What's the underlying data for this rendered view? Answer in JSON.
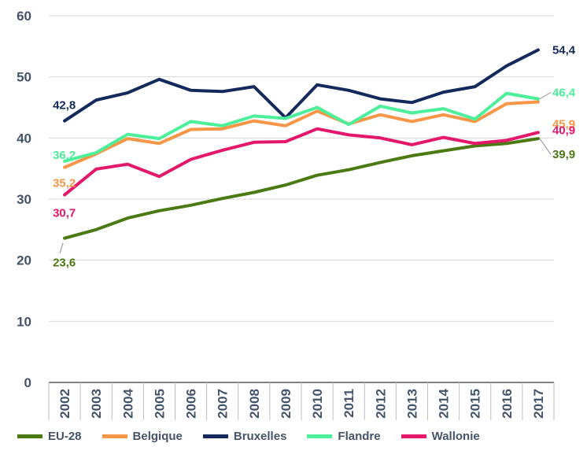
{
  "chart_data": {
    "type": "line",
    "categories": [
      "2002",
      "2003",
      "2004",
      "2005",
      "2006",
      "2007",
      "2008",
      "2009",
      "2010",
      "2011",
      "2012",
      "2013",
      "2014",
      "2015",
      "2016",
      "2017"
    ],
    "ylim": [
      0,
      60
    ],
    "y_ticks": [
      "0",
      "10",
      "20",
      "30",
      "40",
      "50",
      "60"
    ],
    "grid": true,
    "legend_position": "bottom",
    "series": [
      {
        "name": "EU-28",
        "color": "#4b7a12",
        "values": [
          23.6,
          25.0,
          26.9,
          28.1,
          29.0,
          30.1,
          31.1,
          32.3,
          33.9,
          34.8,
          36.0,
          37.1,
          37.9,
          38.7,
          39.1,
          39.9
        ],
        "start_label": "23,6",
        "end_label": "39,9"
      },
      {
        "name": "Belgique",
        "color": "#f79646",
        "values": [
          35.2,
          37.4,
          39.9,
          39.1,
          41.4,
          41.5,
          42.8,
          42.0,
          44.4,
          42.3,
          43.8,
          42.7,
          43.8,
          42.7,
          45.6,
          45.9
        ],
        "start_label": "35,2",
        "end_label": "45,9"
      },
      {
        "name": "Bruxelles",
        "color": "#142a5c",
        "values": [
          42.8,
          46.2,
          47.4,
          49.6,
          47.8,
          47.6,
          48.4,
          43.3,
          48.7,
          47.8,
          46.4,
          45.8,
          47.5,
          48.4,
          51.8,
          54.4
        ],
        "start_label": "42,8",
        "end_label": "54,4"
      },
      {
        "name": "Flandre",
        "color": "#4cef9a",
        "values": [
          36.2,
          37.6,
          40.6,
          39.9,
          42.7,
          42.0,
          43.6,
          43.2,
          45.0,
          42.2,
          45.2,
          44.1,
          44.8,
          43.1,
          47.3,
          46.4
        ],
        "start_label": "36,2",
        "end_label": "46,4"
      },
      {
        "name": "Wallonie",
        "color": "#e5176b",
        "values": [
          30.7,
          34.9,
          35.7,
          33.7,
          36.5,
          38.0,
          39.3,
          39.4,
          41.5,
          40.5,
          40.0,
          38.9,
          40.1,
          39.1,
          39.6,
          40.9
        ],
        "start_label": "30,7",
        "end_label": "40,9"
      }
    ]
  }
}
